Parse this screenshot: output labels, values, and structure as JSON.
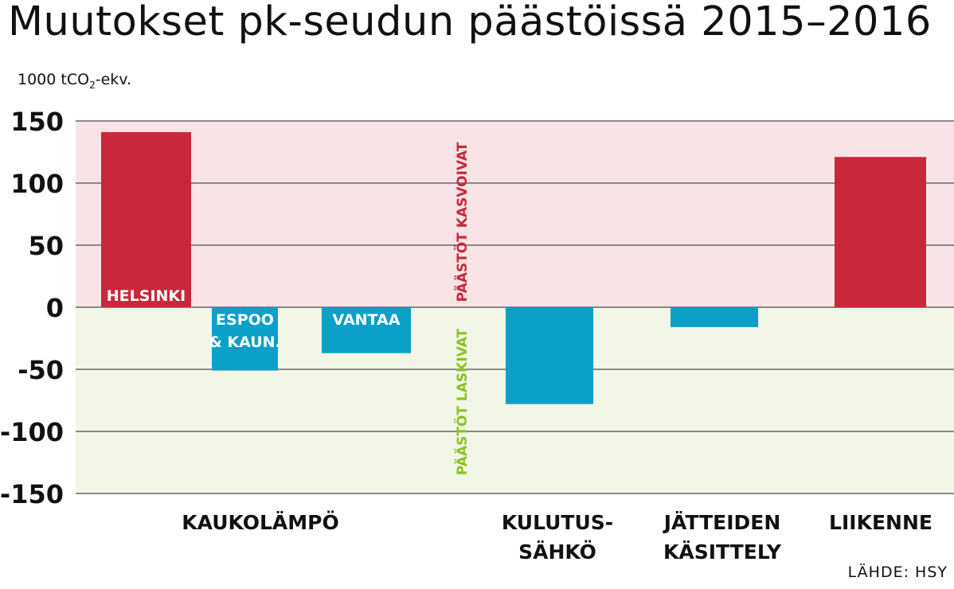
{
  "title": "Muutokset pk-seudun päästöissä 2015–2016",
  "unit": {
    "prefix": "1000 tCO",
    "sub": "2",
    "suffix": "-ekv."
  },
  "source": "LÄHDE: HSY",
  "colors": {
    "positive_zone": "#f8e4e6",
    "negative_zone": "#f1f6e6",
    "positive_bar": "#c8273c",
    "negative_bar": "#0aa0c8",
    "positive_label": "#c8273c",
    "negative_label": "#8cc21f"
  },
  "zone_labels": {
    "positive": "PÄÄSTÖT KASVOIVAT",
    "negative": "PÄÄSTÖT LASKIVAT"
  },
  "chart_data": {
    "type": "bar",
    "ylim": [
      -150,
      150
    ],
    "yticks": [
      150,
      100,
      50,
      0,
      -50,
      -100,
      -150
    ],
    "ytick_labels": [
      "150",
      "100",
      "50",
      "0",
      "-50",
      "-100",
      "-150"
    ],
    "grid": true,
    "bars": [
      {
        "value": 141,
        "label": [
          "HELSINKI"
        ]
      },
      {
        "value": -51,
        "label": [
          "ESPOO",
          "& KAUN."
        ]
      },
      {
        "value": -37,
        "label": [
          "VANTAA"
        ]
      },
      {
        "value": -78,
        "label": []
      },
      {
        "value": -16,
        "label": []
      },
      {
        "value": 121,
        "label": []
      }
    ],
    "categories": [
      {
        "label": [
          "KAUKOLÄMPÖ"
        ]
      },
      {
        "label": [
          "KULUTUS-",
          "SÄHKÖ"
        ]
      },
      {
        "label": [
          "JÄTTEIDEN",
          "KÄSITTELY"
        ]
      },
      {
        "label": [
          "LIIKENNE"
        ]
      }
    ]
  }
}
